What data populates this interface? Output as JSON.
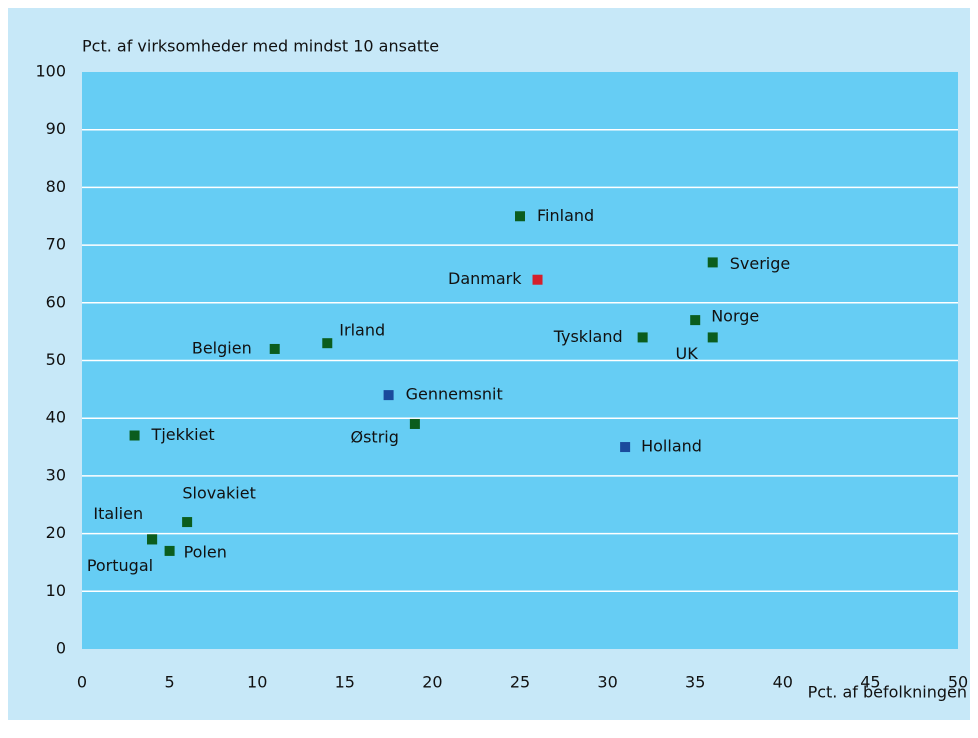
{
  "chart_data": {
    "type": "scatter",
    "y_label": "Pct. af virksomheder med mindst 10 ansatte",
    "x_label": "Pct. af befolkningen",
    "xlim": [
      0,
      50
    ],
    "xticks": [
      0,
      5,
      10,
      15,
      20,
      25,
      30,
      35,
      40,
      45,
      50
    ],
    "ylim": [
      0,
      100
    ],
    "yticks": [
      0,
      10,
      20,
      30,
      40,
      50,
      60,
      70,
      80,
      90,
      100
    ],
    "grid": true,
    "points": [
      {
        "label": "Finland",
        "x": 25,
        "y": 75,
        "color": "#0b5d1e"
      },
      {
        "label": "Danmark",
        "x": 26,
        "y": 64,
        "color": "#d4202c"
      },
      {
        "label": "Sverige",
        "x": 36,
        "y": 67,
        "color": "#0b5d1e"
      },
      {
        "label": "Norge",
        "x": 35,
        "y": 57,
        "color": "#0b5d1e"
      },
      {
        "label": "UK",
        "x": 36,
        "y": 54,
        "color": "#0b5d1e"
      },
      {
        "label": "Tyskland",
        "x": 32,
        "y": 54,
        "color": "#0b5d1e"
      },
      {
        "label": "Irland",
        "x": 14,
        "y": 53,
        "color": "#0b5d1e"
      },
      {
        "label": "Belgien",
        "x": 11,
        "y": 52,
        "color": "#0b5d1e"
      },
      {
        "label": "Gennemsnit",
        "x": 17.5,
        "y": 44,
        "color": "#1a4a9c"
      },
      {
        "label": "Østrig",
        "x": 19,
        "y": 39,
        "color": "#0b5d1e"
      },
      {
        "label": "Holland",
        "x": 31,
        "y": 35,
        "color": "#1a4a9c"
      },
      {
        "label": "Tjekkiet",
        "x": 3,
        "y": 37,
        "color": "#0b5d1e"
      },
      {
        "label": "Slovakiet",
        "x": 6,
        "y": 22,
        "color": "#0b5d1e"
      },
      {
        "label": "Italien",
        "x": 4,
        "y": 19,
        "color": "#0b5d1e"
      },
      {
        "label": "Portugal",
        "x": 4,
        "y": 19,
        "color": "#0b5d1e"
      },
      {
        "label": "Polen",
        "x": 5,
        "y": 17,
        "color": "#0b5d1e"
      }
    ]
  }
}
